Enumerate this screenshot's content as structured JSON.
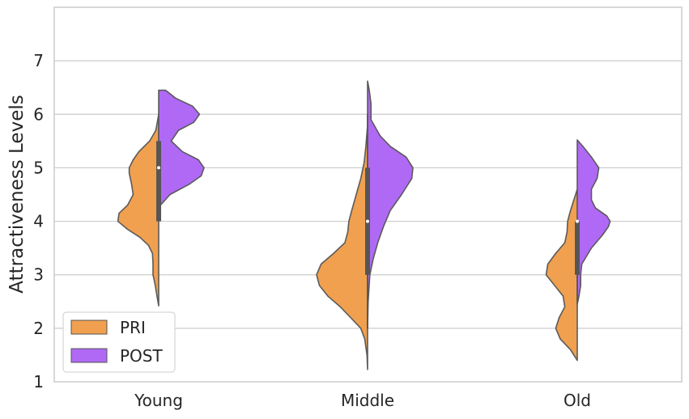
{
  "chart_data": {
    "type": "violin",
    "split": true,
    "title": "",
    "xlabel": "",
    "ylabel": "Attractiveness Levels",
    "ylim": [
      1,
      8
    ],
    "yticks": [
      1,
      2,
      3,
      4,
      5,
      6,
      7
    ],
    "grid": "horizontal",
    "legend_position": "lower-left",
    "categories": [
      "Young",
      "Middle",
      "Old"
    ],
    "series": [
      {
        "name": "PRI",
        "color": "#f0a04f",
        "side": "left",
        "profiles": [
          [
            [
              2.42,
              0.0
            ],
            [
              2.6,
              0.03
            ],
            [
              2.8,
              0.06
            ],
            [
              3.0,
              0.1
            ],
            [
              3.2,
              0.1
            ],
            [
              3.4,
              0.11
            ],
            [
              3.55,
              0.18
            ],
            [
              3.7,
              0.33
            ],
            [
              3.85,
              0.55
            ],
            [
              4.0,
              0.72
            ],
            [
              4.15,
              0.7
            ],
            [
              4.3,
              0.55
            ],
            [
              4.5,
              0.45
            ],
            [
              4.7,
              0.48
            ],
            [
              4.9,
              0.52
            ],
            [
              5.0,
              0.52
            ],
            [
              5.15,
              0.45
            ],
            [
              5.3,
              0.35
            ],
            [
              5.5,
              0.16
            ],
            [
              5.7,
              0.05
            ],
            [
              6.0,
              0.0
            ]
          ],
          [
            [
              1.23,
              0.0
            ],
            [
              1.5,
              0.01
            ],
            [
              1.8,
              0.05
            ],
            [
              2.0,
              0.12
            ],
            [
              2.2,
              0.3
            ],
            [
              2.4,
              0.48
            ],
            [
              2.6,
              0.7
            ],
            [
              2.8,
              0.85
            ],
            [
              3.0,
              0.9
            ],
            [
              3.2,
              0.82
            ],
            [
              3.4,
              0.6
            ],
            [
              3.6,
              0.4
            ],
            [
              3.8,
              0.35
            ],
            [
              4.0,
              0.33
            ],
            [
              4.2,
              0.28
            ],
            [
              4.5,
              0.2
            ],
            [
              4.8,
              0.12
            ],
            [
              5.1,
              0.06
            ],
            [
              5.4,
              0.03
            ],
            [
              5.8,
              0.0
            ],
            [
              6.0,
              0.0
            ]
          ],
          [
            [
              1.4,
              0.0
            ],
            [
              1.6,
              0.12
            ],
            [
              1.8,
              0.3
            ],
            [
              2.0,
              0.38
            ],
            [
              2.2,
              0.32
            ],
            [
              2.4,
              0.22
            ],
            [
              2.6,
              0.25
            ],
            [
              2.8,
              0.4
            ],
            [
              3.0,
              0.55
            ],
            [
              3.2,
              0.52
            ],
            [
              3.4,
              0.38
            ],
            [
              3.6,
              0.22
            ],
            [
              3.8,
              0.18
            ],
            [
              4.0,
              0.17
            ],
            [
              4.2,
              0.12
            ],
            [
              4.4,
              0.06
            ],
            [
              4.6,
              0.0
            ]
          ]
        ],
        "quartiles": [
          [
            4.0,
            5.0,
            5.5
          ],
          [
            3.0,
            4.0,
            5.0
          ],
          [
            3.0,
            4.0,
            4.0
          ]
        ],
        "whiskers": [
          [
            4.0,
            5.5
          ],
          [
            2.0,
            6.0
          ],
          [
            2.5,
            4.0
          ]
        ]
      },
      {
        "name": "POST",
        "color": "#b069f5",
        "side": "right",
        "profiles": [
          [
            [
              4.0,
              0.0
            ],
            [
              4.3,
              0.03
            ],
            [
              4.5,
              0.2
            ],
            [
              4.7,
              0.55
            ],
            [
              4.85,
              0.75
            ],
            [
              5.0,
              0.8
            ],
            [
              5.15,
              0.7
            ],
            [
              5.3,
              0.42
            ],
            [
              5.5,
              0.22
            ],
            [
              5.7,
              0.35
            ],
            [
              5.85,
              0.62
            ],
            [
              6.0,
              0.72
            ],
            [
              6.15,
              0.6
            ],
            [
              6.3,
              0.3
            ],
            [
              6.45,
              0.12
            ],
            [
              6.45,
              0.0
            ]
          ],
          [
            [
              2.0,
              0.0
            ],
            [
              2.5,
              0.01
            ],
            [
              3.0,
              0.04
            ],
            [
              3.3,
              0.1
            ],
            [
              3.6,
              0.18
            ],
            [
              3.9,
              0.28
            ],
            [
              4.2,
              0.4
            ],
            [
              4.5,
              0.6
            ],
            [
              4.8,
              0.78
            ],
            [
              5.0,
              0.8
            ],
            [
              5.2,
              0.68
            ],
            [
              5.4,
              0.4
            ],
            [
              5.6,
              0.22
            ],
            [
              5.9,
              0.06
            ],
            [
              6.2,
              0.06
            ],
            [
              6.45,
              0.03
            ],
            [
              6.62,
              0.0
            ]
          ],
          [
            [
              2.45,
              0.0
            ],
            [
              2.6,
              0.03
            ],
            [
              2.8,
              0.06
            ],
            [
              3.0,
              0.06
            ],
            [
              3.2,
              0.08
            ],
            [
              3.5,
              0.25
            ],
            [
              3.75,
              0.45
            ],
            [
              3.9,
              0.55
            ],
            [
              4.0,
              0.58
            ],
            [
              4.1,
              0.52
            ],
            [
              4.25,
              0.32
            ],
            [
              4.4,
              0.25
            ],
            [
              4.6,
              0.25
            ],
            [
              4.8,
              0.35
            ],
            [
              5.0,
              0.38
            ],
            [
              5.2,
              0.25
            ],
            [
              5.4,
              0.1
            ],
            [
              5.52,
              0.0
            ]
          ]
        ]
      }
    ]
  }
}
